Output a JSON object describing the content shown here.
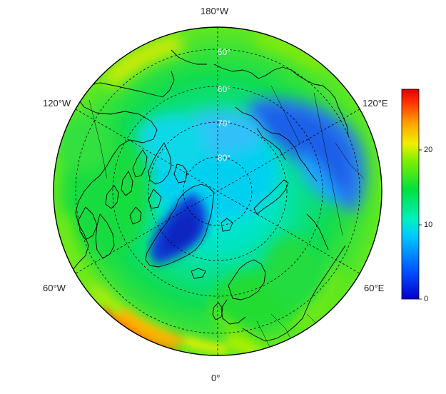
{
  "map": {
    "projection": "north-polar-stereographic",
    "longitude_labels": [
      "180°W",
      "120°W",
      "120°E",
      "60°W",
      "60°E",
      "0°"
    ],
    "latitude_labels": [
      "50°",
      "60°",
      "70°",
      "80°"
    ]
  },
  "colorbar": {
    "min": 0,
    "max": 27,
    "ticks": [
      "0",
      "10",
      "20"
    ],
    "colors": [
      "#0000c8",
      "#0050ff",
      "#00c8ff",
      "#00f0c0",
      "#00e040",
      "#80f000",
      "#f0f000",
      "#ffa000",
      "#ff3000",
      "#e00000"
    ]
  }
}
